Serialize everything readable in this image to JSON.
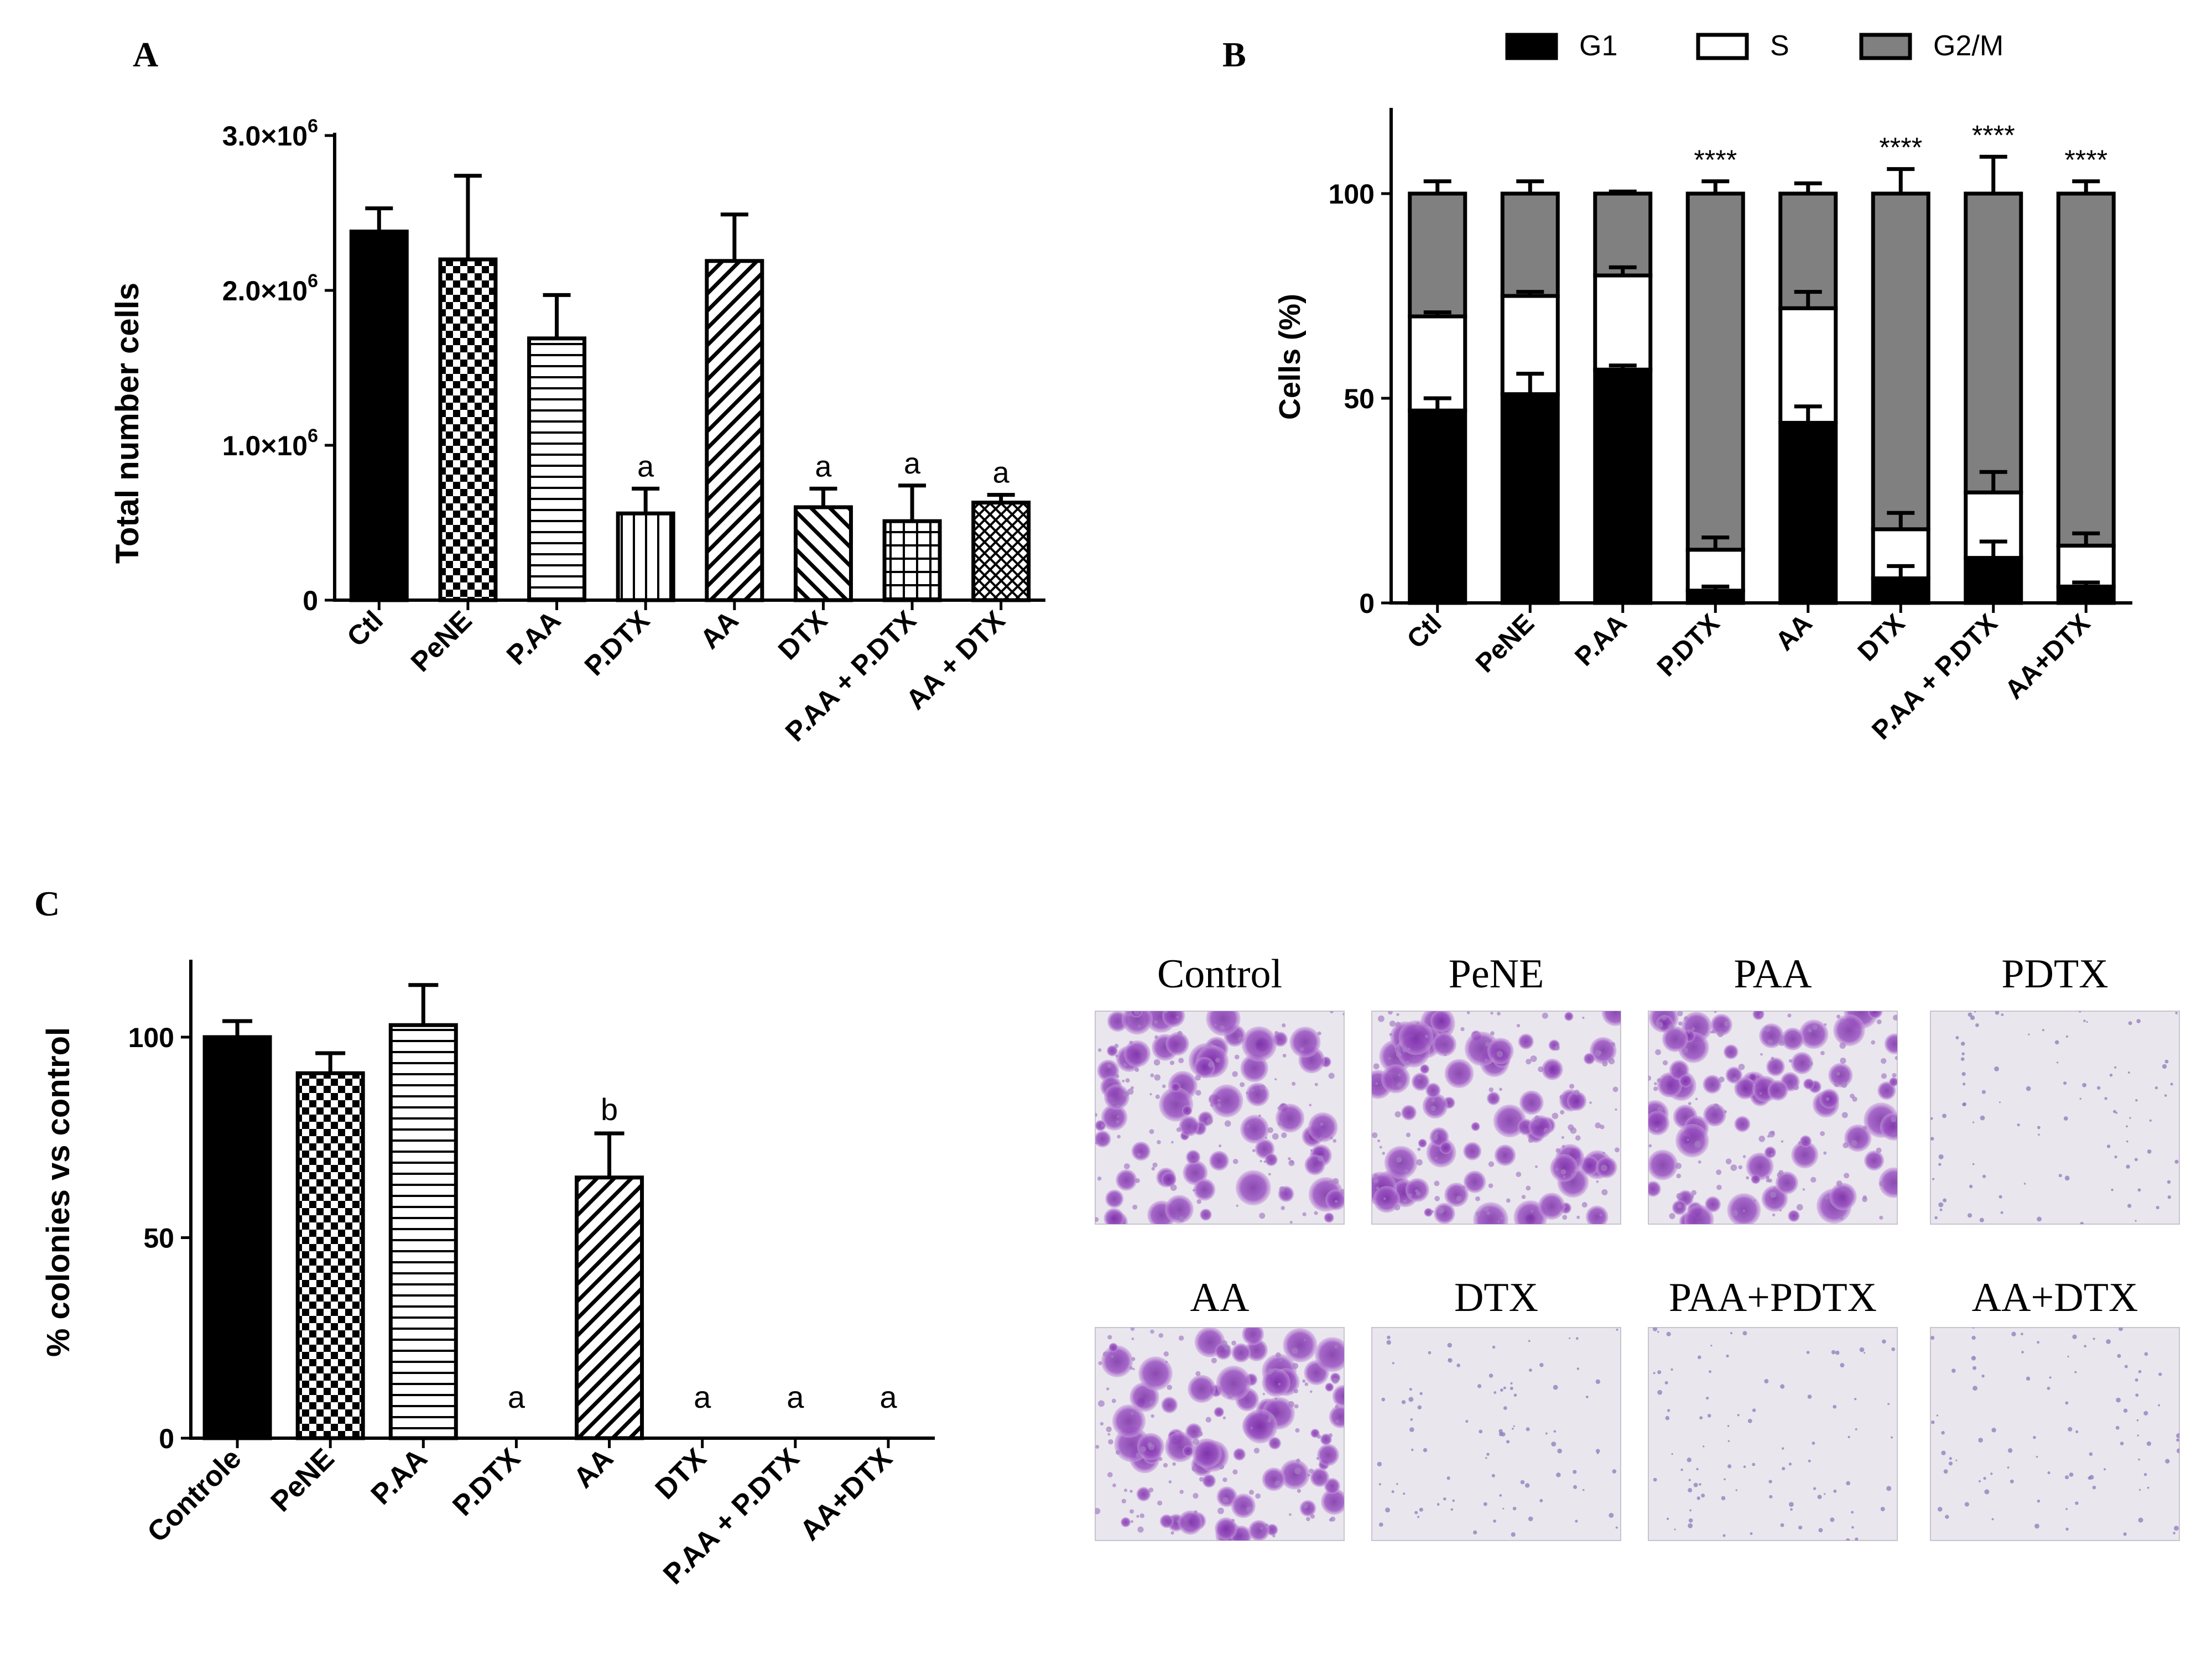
{
  "panels": [
    {
      "id": "A",
      "letter": "A"
    },
    {
      "id": "B",
      "letter": "B"
    },
    {
      "id": "C",
      "letter": "C"
    }
  ],
  "chart_data": [
    {
      "id": "A",
      "type": "bar",
      "title": "",
      "ylabel": "Total number cells",
      "xlabel": "",
      "ylim": [
        0,
        3000000
      ],
      "yticks": [
        {
          "value": 0,
          "mantissa": "0",
          "exponent": ""
        },
        {
          "value": 1000000,
          "mantissa": "1.0×10",
          "exponent": "6"
        },
        {
          "value": 2000000,
          "mantissa": "2.0×10",
          "exponent": "6"
        },
        {
          "value": 3000000,
          "mantissa": "3.0×10",
          "exponent": "6"
        }
      ],
      "categories": [
        "Ctl",
        "PeNE",
        "P.AA",
        "P.DTX",
        "AA",
        "DTX",
        "P.AA + P.DTX",
        "AA + DTX"
      ],
      "values": [
        2380000,
        2200000,
        1690000,
        560000,
        2190000,
        600000,
        510000,
        630000
      ],
      "errors": [
        150000,
        540000,
        280000,
        160000,
        300000,
        120000,
        230000,
        50000
      ],
      "patterns": [
        "solid",
        "checker",
        "hlines",
        "vlines",
        "diag-right",
        "diag-left",
        "grid",
        "diag-cross"
      ],
      "annotations": [
        "",
        "",
        "",
        "a",
        "",
        "a",
        "a",
        "a"
      ]
    },
    {
      "id": "B",
      "type": "bar",
      "stacked": true,
      "title": "",
      "ylabel": "Cells (%)",
      "xlabel": "",
      "ylim": [
        0,
        120
      ],
      "yticks": [
        0,
        50,
        100
      ],
      "legend_position": "top",
      "categories": [
        "Ctl",
        "PeNE",
        "P.AA",
        "P.DTX",
        "AA",
        "DTX",
        "P.AA + P.DTX",
        "AA+DTX"
      ],
      "series": [
        {
          "name": "G1",
          "color": "#000000",
          "values": [
            47,
            51,
            57,
            3,
            44,
            6,
            11,
            4
          ],
          "errors": [
            3,
            5,
            1,
            1,
            4,
            3,
            4,
            1
          ]
        },
        {
          "name": "S",
          "color": "#ffffff",
          "values": [
            23,
            24,
            23,
            10,
            28,
            12,
            16,
            10
          ],
          "errors": [
            1,
            1,
            2,
            3,
            4,
            4,
            5,
            3
          ]
        },
        {
          "name": "G2/M",
          "color": "#808080",
          "values": [
            30,
            25,
            20,
            87,
            28,
            82,
            73,
            86
          ],
          "errors": [
            3,
            3,
            0.5,
            3,
            2.5,
            6,
            9,
            3
          ]
        }
      ],
      "annotations": [
        "",
        "",
        "",
        "****",
        "",
        "****",
        "****",
        "****"
      ]
    },
    {
      "id": "C",
      "type": "bar",
      "title": "",
      "ylabel": "% colonies vs control",
      "xlabel": "",
      "ylim": [
        0,
        120
      ],
      "yticks": [
        0,
        50,
        100
      ],
      "categories": [
        "Controle",
        "PeNE",
        "P.AA",
        "P.DTX",
        "AA",
        "DTX",
        "P.AA + P.DTX",
        "AA+DTX"
      ],
      "values": [
        100,
        91,
        103,
        0,
        65,
        0,
        0,
        0
      ],
      "errors": [
        4,
        5,
        10,
        0,
        11,
        0,
        0,
        0
      ],
      "patterns": [
        "solid",
        "checker",
        "hlines",
        "vlines",
        "diag-right",
        "diag-left",
        "grid",
        "diag-cross"
      ],
      "annotations": [
        "",
        "",
        "",
        "a",
        "b",
        "a",
        "a",
        "a"
      ]
    }
  ],
  "micrographs": [
    {
      "label": "Control",
      "density": "high"
    },
    {
      "label": "PeNE",
      "density": "high"
    },
    {
      "label": "PAA",
      "density": "high"
    },
    {
      "label": "PDTX",
      "density": "sparse"
    },
    {
      "label": "AA",
      "density": "high"
    },
    {
      "label": "DTX",
      "density": "sparse"
    },
    {
      "label": "PAA+PDTX",
      "density": "sparse"
    },
    {
      "label": "AA+DTX",
      "density": "sparse"
    }
  ]
}
